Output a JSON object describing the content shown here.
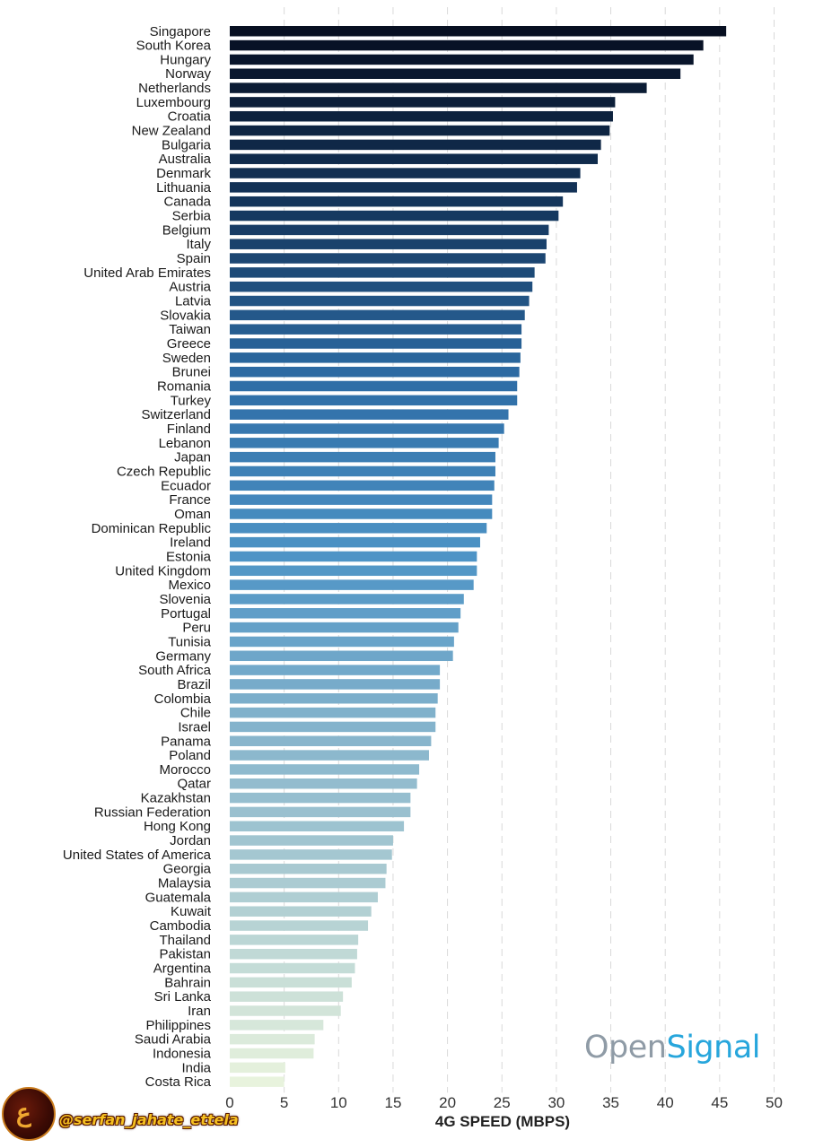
{
  "chart_data": {
    "type": "bar",
    "orientation": "horizontal",
    "xlabel": "4G SPEED (MBPS)",
    "xlim": [
      0,
      50
    ],
    "xticks": [
      0,
      5,
      10,
      15,
      20,
      25,
      30,
      35,
      40,
      45,
      50
    ],
    "grid": "vertical dashed",
    "categories": [
      "Singapore",
      "South Korea",
      "Hungary",
      "Norway",
      "Netherlands",
      "Luxembourg",
      "Croatia",
      "New Zealand",
      "Bulgaria",
      "Australia",
      "Denmark",
      "Lithuania",
      "Canada",
      "Serbia",
      "Belgium",
      "Italy",
      "Spain",
      "United Arab Emirates",
      "Austria",
      "Latvia",
      "Slovakia",
      "Taiwan",
      "Greece",
      "Sweden",
      "Brunei",
      "Romania",
      "Turkey",
      "Switzerland",
      "Finland",
      "Lebanon",
      "Japan",
      "Czech Republic",
      "Ecuador",
      "France",
      "Oman",
      "Dominican Republic",
      "Ireland",
      "Estonia",
      "United Kingdom",
      "Mexico",
      "Slovenia",
      "Portugal",
      "Peru",
      "Tunisia",
      "Germany",
      "South Africa",
      "Brazil",
      "Colombia",
      "Chile",
      "Israel",
      "Panama",
      "Poland",
      "Morocco",
      "Qatar",
      "Kazakhstan",
      "Russian Federation",
      "Hong Kong",
      "Jordan",
      "United States of America",
      "Georgia",
      "Malaysia",
      "Guatemala",
      "Kuwait",
      "Cambodia",
      "Thailand",
      "Pakistan",
      "Argentina",
      "Bahrain",
      "Sri Lanka",
      "Iran",
      "Philippines",
      "Saudi Arabia",
      "Indonesia",
      "India",
      "Costa Rica"
    ],
    "values": [
      45.6,
      43.5,
      42.6,
      41.4,
      38.3,
      35.4,
      35.2,
      34.9,
      34.1,
      33.8,
      32.2,
      31.9,
      30.6,
      30.2,
      29.3,
      29.1,
      29.0,
      28.0,
      27.8,
      27.5,
      27.1,
      26.8,
      26.8,
      26.7,
      26.6,
      26.4,
      26.4,
      25.6,
      25.2,
      24.7,
      24.4,
      24.4,
      24.3,
      24.1,
      24.1,
      23.6,
      23.0,
      22.7,
      22.7,
      22.4,
      21.5,
      21.2,
      21.0,
      20.6,
      20.5,
      19.3,
      19.3,
      19.1,
      18.9,
      18.9,
      18.5,
      18.3,
      17.4,
      17.2,
      16.6,
      16.6,
      16.0,
      15.0,
      14.9,
      14.4,
      14.3,
      13.6,
      13.0,
      12.7,
      11.8,
      11.7,
      11.5,
      11.2,
      10.4,
      10.2,
      8.6,
      7.8,
      7.7,
      5.1,
      5.0
    ],
    "color_scale": [
      "#070f21",
      "#14365c",
      "#2e6da6",
      "#4e94c6",
      "#86b4cc",
      "#b1cfd3",
      "#e8f3dd"
    ]
  },
  "brand": {
    "open": "Open",
    "signal": "Signal"
  },
  "watermark": {
    "handle": "@serfan_jahate_ettela",
    "logo_glyph": "ع"
  }
}
